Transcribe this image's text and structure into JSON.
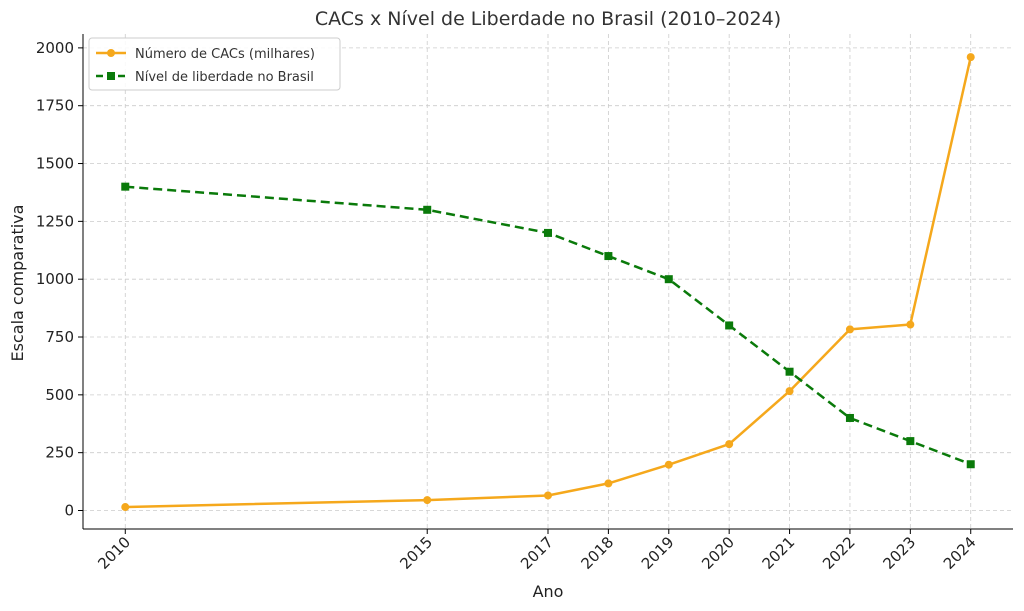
{
  "chart_data": {
    "type": "line",
    "title": "CACs x Nível de Liberdade no Brasil (2010–2024)",
    "xlabel": "Ano",
    "ylabel": "Escala comparativa",
    "x": [
      2010,
      2015,
      2017,
      2018,
      2019,
      2020,
      2021,
      2022,
      2023,
      2024
    ],
    "x_tick_labels": [
      "2010",
      "2015",
      "2017",
      "2018",
      "2019",
      "2020",
      "2021",
      "2022",
      "2023",
      "2024"
    ],
    "y_ticks": [
      0,
      250,
      500,
      750,
      1000,
      1250,
      1500,
      1750,
      2000
    ],
    "y_tick_labels": [
      "0",
      "250",
      "500",
      "750",
      "1000",
      "1250",
      "1500",
      "1750",
      "2000"
    ],
    "xlim": [
      2009.3,
      2024.7
    ],
    "ylim": [
      -80,
      2060
    ],
    "grid": true,
    "legend_position": "top-left",
    "series": [
      {
        "name": "Número de CACs (milhares)",
        "color": "#f5a81c",
        "marker": "circle",
        "linestyle": "solid",
        "values": [
          15,
          45,
          65,
          117,
          198,
          287,
          516,
          783,
          804,
          1960
        ]
      },
      {
        "name": "Nível de liberdade no Brasil",
        "color": "#0a7a0a",
        "marker": "square",
        "linestyle": "dashed",
        "values": [
          1400,
          1300,
          1200,
          1100,
          1000,
          800,
          600,
          400,
          300,
          200
        ]
      }
    ]
  }
}
